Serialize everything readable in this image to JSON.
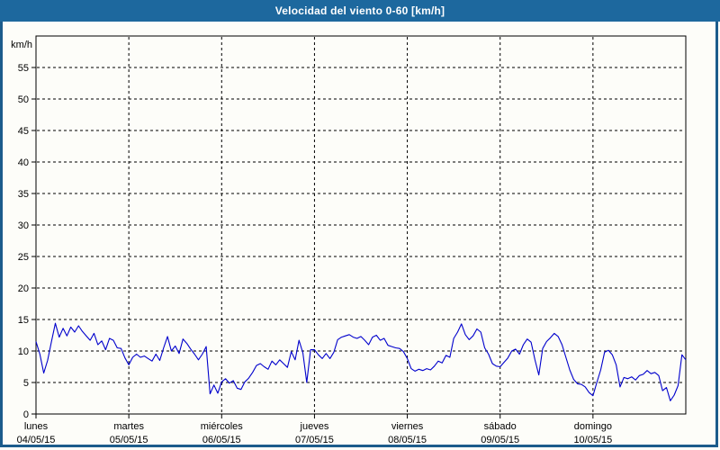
{
  "window": {
    "title": "Velocidad del viento 0-60 [km/h]"
  },
  "colors": {
    "titlebar_bg": "#1d689e",
    "titlebar_text": "#ffffff",
    "window_border": "#1c5c8c",
    "page_bg": "#fdfdf9",
    "line": "#0000cc",
    "grid": "#000000",
    "axis": "#000000",
    "text": "#000000"
  },
  "chart_data": {
    "type": "line",
    "title": "Velocidad del viento 0-60 [km/h]",
    "ylabel": "km/h",
    "xlabel": "",
    "ylim": [
      0,
      60
    ],
    "ytick_step": 5,
    "ytick_labels": [
      "0",
      "5",
      "10",
      "15",
      "20",
      "25",
      "30",
      "35",
      "40",
      "45",
      "50",
      "55"
    ],
    "grid": true,
    "grid_style": "dashed",
    "legend": false,
    "x_categories": [
      {
        "day": "lunes",
        "date": "04/05/15"
      },
      {
        "day": "martes",
        "date": "05/05/15"
      },
      {
        "day": "miércoles",
        "date": "06/05/15"
      },
      {
        "day": "jueves",
        "date": "07/05/15"
      },
      {
        "day": "viernes",
        "date": "08/05/15"
      },
      {
        "day": "sábado",
        "date": "09/05/15"
      },
      {
        "day": "domingo",
        "date": "10/05/15"
      }
    ],
    "points_per_day": 24,
    "series": [
      {
        "name": "Velocidad del viento",
        "values": [
          11.5,
          9.5,
          6.5,
          8.5,
          11.5,
          14.4,
          12.2,
          13.6,
          12.4,
          13.8,
          13.0,
          14.0,
          13.1,
          12.4,
          11.7,
          12.8,
          11.0,
          11.6,
          10.2,
          12.0,
          11.7,
          10.5,
          10.4,
          8.9,
          7.8,
          9.0,
          9.5,
          9.0,
          9.2,
          8.8,
          8.4,
          9.5,
          8.5,
          10.5,
          12.3,
          10.0,
          10.8,
          9.6,
          11.9,
          11.2,
          10.3,
          9.5,
          8.6,
          9.5,
          10.7,
          3.2,
          4.6,
          3.3,
          5.1,
          5.6,
          4.9,
          5.3,
          4.1,
          3.9,
          5.1,
          5.7,
          6.6,
          7.7,
          8.0,
          7.5,
          7.1,
          8.4,
          7.8,
          8.6,
          8.0,
          7.4,
          9.9,
          8.6,
          11.7,
          9.7,
          5.0,
          10.2,
          10.2,
          9.4,
          8.8,
          9.6,
          8.8,
          9.8,
          11.8,
          12.2,
          12.4,
          12.6,
          12.2,
          12.0,
          12.3,
          11.7,
          11.0,
          12.2,
          12.5,
          11.7,
          12.0,
          10.9,
          10.7,
          10.5,
          10.4,
          9.9,
          8.8,
          7.2,
          6.8,
          7.1,
          6.9,
          7.2,
          7.0,
          7.6,
          8.4,
          8.1,
          9.3,
          9.0,
          12.0,
          13.0,
          14.3,
          12.6,
          11.8,
          12.4,
          13.5,
          13.0,
          10.5,
          9.5,
          8.0,
          7.6,
          7.5,
          8.2,
          8.9,
          10.0,
          10.3,
          9.5,
          11.0,
          11.9,
          11.4,
          8.6,
          6.2,
          10.4,
          11.5,
          12.1,
          12.8,
          12.3,
          11.0,
          9.0,
          7.0,
          5.5,
          4.8,
          4.7,
          4.3,
          3.4,
          2.9,
          5.0,
          7.0,
          9.8,
          10.1,
          9.4,
          7.8,
          4.3,
          5.8,
          5.6,
          5.9,
          5.4,
          6.1,
          6.3,
          6.9,
          6.4,
          6.6,
          6.1,
          3.7,
          4.2,
          2.1,
          3.0,
          4.5,
          9.4,
          8.6
        ]
      }
    ]
  }
}
